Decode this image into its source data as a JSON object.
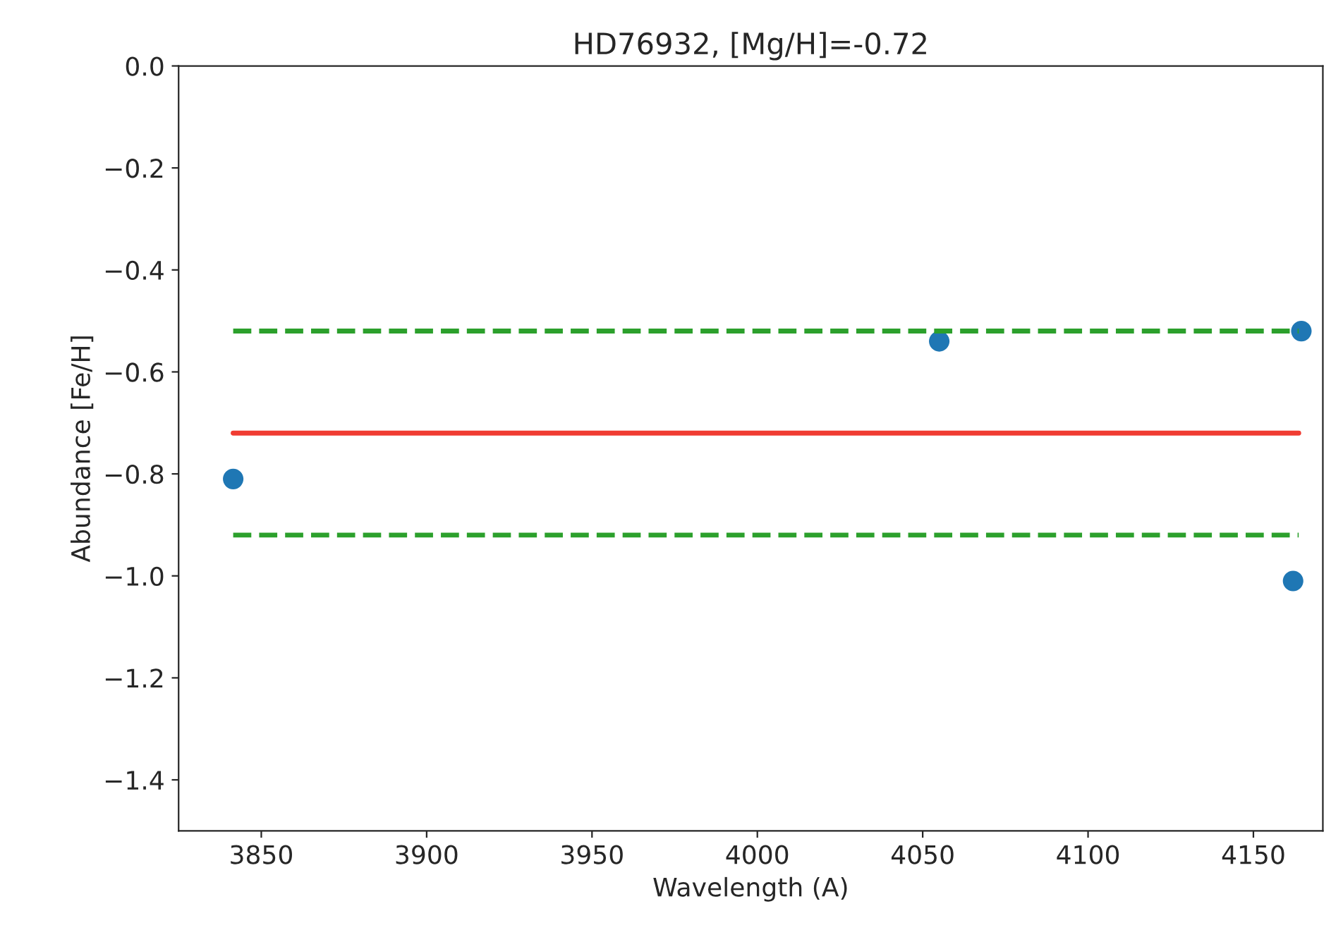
{
  "chart_data": {
    "type": "scatter",
    "title": "HD76932, [Mg/H]=-0.72",
    "xlabel": "Wavelength (A)",
    "ylabel": "Abundance [Fe/H]",
    "xlim": [
      3825,
      4171
    ],
    "xticks": [
      3850,
      3900,
      3950,
      4000,
      4050,
      4100,
      4150
    ],
    "ylim": [
      -1.5,
      0.0
    ],
    "yticks": [
      {
        "value": -1.4,
        "label": "−1.4"
      },
      {
        "value": -1.2,
        "label": "−1.2"
      },
      {
        "value": -1.0,
        "label": "−1.0"
      },
      {
        "value": -0.8,
        "label": "−0.8"
      },
      {
        "value": -0.6,
        "label": "−0.6"
      },
      {
        "value": -0.4,
        "label": "−0.4"
      },
      {
        "value": -0.2,
        "label": "−0.2"
      },
      {
        "value": 0.0,
        "label": "0.0"
      }
    ],
    "grid": false,
    "legend": false,
    "series": [
      {
        "color": "#1f77b4",
        "marker": "circle",
        "x": [
          3841.5,
          4055,
          4164.5,
          4162
        ],
        "values": [
          -0.81,
          -0.54,
          -0.52,
          -1.01
        ]
      },
      {
        "type": "line",
        "color": "#f03c32",
        "line_style": "solid",
        "x": [
          3841.5,
          4163.7
        ],
        "values": [
          -0.72,
          -0.72
        ]
      },
      {
        "type": "line",
        "color": "#2ca02c",
        "line_style": "dashed",
        "x": [
          3841.5,
          4163.7
        ],
        "values": [
          -0.52,
          -0.52
        ]
      },
      {
        "type": "line",
        "color": "#2ca02c",
        "line_style": "dashed",
        "x": [
          3841.5,
          4163.7
        ],
        "values": [
          -0.92,
          -0.92
        ]
      }
    ]
  }
}
